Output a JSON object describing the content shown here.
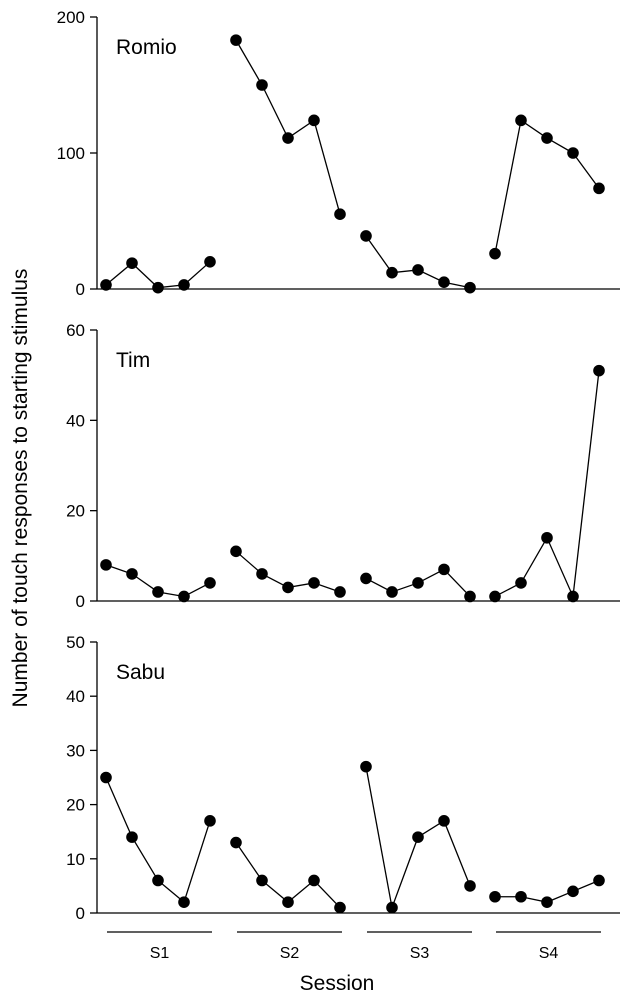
{
  "figure": {
    "ylabel": "Number of touch responses to starting stimulus",
    "xlabel": "Session",
    "sessions": [
      "S1",
      "S2",
      "S3",
      "S4"
    ]
  },
  "chart_data": [
    {
      "type": "line",
      "series": [
        {
          "name": "Romio",
          "groups": [
            [
              3,
              19,
              1,
              3,
              20
            ],
            [
              183,
              150,
              111,
              124,
              55
            ],
            [
              39,
              12,
              14,
              5,
              1
            ],
            [
              26,
              124,
              111,
              100,
              74
            ]
          ]
        }
      ],
      "ylim": [
        0,
        200
      ],
      "yticks": [
        0,
        100,
        200
      ]
    },
    {
      "type": "line",
      "series": [
        {
          "name": "Tim",
          "groups": [
            [
              8,
              6,
              2,
              1,
              4
            ],
            [
              11,
              6,
              3,
              4,
              2
            ],
            [
              5,
              2,
              4,
              7,
              1
            ],
            [
              1,
              4,
              14,
              1,
              51
            ]
          ]
        }
      ],
      "ylim": [
        0,
        60
      ],
      "yticks": [
        0,
        20,
        40,
        60
      ]
    },
    {
      "type": "line",
      "series": [
        {
          "name": "Sabu",
          "groups": [
            [
              25,
              14,
              6,
              2,
              17
            ],
            [
              13,
              6,
              2,
              6,
              1
            ],
            [
              27,
              1,
              14,
              17,
              5
            ],
            [
              3,
              3,
              2,
              4,
              6
            ]
          ]
        }
      ],
      "ylim": [
        0,
        50
      ],
      "yticks": [
        0,
        10,
        20,
        30,
        40,
        50
      ]
    }
  ]
}
